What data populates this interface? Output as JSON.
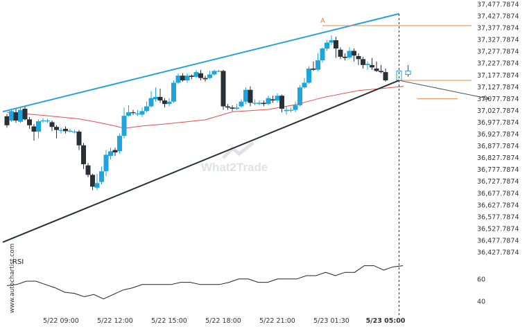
{
  "chart_data": {
    "type": "candlestick",
    "watermark": "What2Trade",
    "side_label": "www.autochartist.com",
    "pattern_marker": "A",
    "y_ticks": [
      "37,477.7874",
      "37,427.7874",
      "37,377.7874",
      "37,327.7874",
      "37,277.7874",
      "37,227.7874",
      "37,177.7874",
      "37,127.7874",
      "37,077.7874",
      "37,027.7874",
      "36,977.7874",
      "36,927.7874",
      "36,877.7874",
      "36,827.7874",
      "36,777.7874",
      "36,727.7874",
      "36,677.7874",
      "36,627.7874",
      "36,577.7874",
      "36,527.7874",
      "36,477.7874",
      "36,427.7874"
    ],
    "y_range": [
      36427.7874,
      37477.7874
    ],
    "x_ticks": [
      {
        "label": "5/22 09:00",
        "bar": 12,
        "bold": false
      },
      {
        "label": "5/22 12:00",
        "bar": 24,
        "bold": false
      },
      {
        "label": "5/22 15:00",
        "bar": 36,
        "bold": false
      },
      {
        "label": "5/22 18:00",
        "bar": 48,
        "bold": false
      },
      {
        "label": "5/22 21:00",
        "bar": 60,
        "bold": false
      },
      {
        "label": "5/23 01:30",
        "bar": 72,
        "bold": false
      },
      {
        "label": "5/23 05:00",
        "bar": 84,
        "bold": true
      }
    ],
    "candles": [
      [
        37003,
        36965,
        37012,
        36955
      ],
      [
        36985,
        37025,
        37030,
        36980
      ],
      [
        37020,
        36985,
        37035,
        36975
      ],
      [
        36980,
        37030,
        37040,
        36975
      ],
      [
        37035,
        36990,
        37045,
        36985
      ],
      [
        36990,
        36965,
        37000,
        36950
      ],
      [
        36960,
        36938,
        36970,
        36900
      ],
      [
        36938,
        36982,
        36990,
        36910
      ],
      [
        36985,
        36985,
        36995,
        36975
      ],
      [
        36983,
        36985,
        36992,
        36975
      ],
      [
        36978,
        36958,
        36985,
        36940
      ],
      [
        36958,
        36945,
        36965,
        36910
      ],
      [
        36945,
        36945,
        36955,
        36930
      ],
      [
        36950,
        36940,
        36960,
        36930
      ],
      [
        36938,
        36942,
        36950,
        36935
      ],
      [
        36938,
        36938,
        36945,
        36930
      ],
      [
        36938,
        36880,
        36945,
        36860
      ],
      [
        36880,
        36800,
        36890,
        36780
      ],
      [
        36795,
        36755,
        36805,
        36745
      ],
      [
        36755,
        36705,
        36760,
        36690
      ],
      [
        36700,
        36720,
        36760,
        36690
      ],
      [
        36725,
        36770,
        36790,
        36715
      ],
      [
        36770,
        36840,
        36860,
        36750
      ],
      [
        36835,
        36855,
        36870,
        36820
      ],
      [
        36860,
        36850,
        36870,
        36835
      ],
      [
        36855,
        36920,
        36930,
        36845
      ],
      [
        36920,
        37005,
        37040,
        36910
      ],
      [
        37005,
        37020,
        37050,
        37000
      ],
      [
        37020,
        37018,
        37030,
        37008
      ],
      [
        37015,
        37015,
        37030,
        37005
      ],
      [
        37010,
        37025,
        37040,
        37000
      ],
      [
        37025,
        37045,
        37065,
        37020
      ],
      [
        37045,
        37080,
        37110,
        37040
      ],
      [
        37075,
        37085,
        37125,
        37065
      ],
      [
        37085,
        37070,
        37120,
        37060
      ],
      [
        37070,
        37055,
        37080,
        37040
      ],
      [
        37055,
        37065,
        37080,
        37045
      ],
      [
        37065,
        37145,
        37155,
        37060
      ],
      [
        37145,
        37175,
        37185,
        37140
      ],
      [
        37175,
        37155,
        37185,
        37150
      ],
      [
        37155,
        37175,
        37185,
        37145
      ],
      [
        37175,
        37170,
        37180,
        37160
      ],
      [
        37170,
        37190,
        37200,
        37165
      ],
      [
        37185,
        37165,
        37200,
        37155
      ],
      [
        37165,
        37160,
        37175,
        37150
      ],
      [
        37165,
        37180,
        37195,
        37160
      ],
      [
        37180,
        37195,
        37200,
        37175
      ],
      [
        37195,
        37195,
        37200,
        37190
      ],
      [
        37195,
        37045,
        37200,
        37030
      ],
      [
        37045,
        37040,
        37055,
        37030
      ],
      [
        37040,
        37035,
        37050,
        37025
      ],
      [
        37035,
        37040,
        37055,
        37030
      ],
      [
        37045,
        37065,
        37075,
        37040
      ],
      [
        37065,
        37115,
        37125,
        37055
      ],
      [
        37115,
        37060,
        37130,
        37045
      ],
      [
        37060,
        37060,
        37075,
        37050
      ],
      [
        37055,
        37060,
        37070,
        37050
      ],
      [
        37060,
        37055,
        37070,
        37045
      ],
      [
        37055,
        37080,
        37090,
        37050
      ],
      [
        37075,
        37070,
        37090,
        37060
      ],
      [
        37070,
        37090,
        37100,
        37060
      ],
      [
        37090,
        37035,
        37095,
        37020
      ],
      [
        37025,
        37030,
        37045,
        37010
      ],
      [
        37030,
        37030,
        37040,
        37020
      ],
      [
        37030,
        37050,
        37065,
        37020
      ],
      [
        37050,
        37125,
        37135,
        37045
      ],
      [
        37125,
        37145,
        37165,
        37120
      ],
      [
        37145,
        37205,
        37215,
        37140
      ],
      [
        37205,
        37200,
        37235,
        37195
      ],
      [
        37200,
        37240,
        37270,
        37195
      ],
      [
        37240,
        37290,
        37295,
        37230
      ],
      [
        37290,
        37315,
        37325,
        37280
      ],
      [
        37315,
        37325,
        37345,
        37305
      ],
      [
        37325,
        37290,
        37340,
        37250
      ],
      [
        37285,
        37255,
        37295,
        37245
      ],
      [
        37255,
        37250,
        37270,
        37240
      ],
      [
        37252,
        37280,
        37295,
        37245
      ],
      [
        37280,
        37260,
        37290,
        37235
      ],
      [
        37258,
        37245,
        37270,
        37220
      ],
      [
        37245,
        37220,
        37255,
        37205
      ],
      [
        37220,
        37225,
        37235,
        37200
      ],
      [
        37220,
        37210,
        37250,
        37200
      ],
      [
        37205,
        37195,
        37235,
        37190
      ],
      [
        37195,
        37190,
        37220,
        37185
      ],
      [
        37190,
        37155,
        37205,
        37150
      ]
    ],
    "projected_candles": [
      [
        37155,
        37195,
        37195,
        37152
      ],
      [
        37180,
        37195,
        37220,
        37170
      ]
    ],
    "ma": [
      [
        0,
        37020
      ],
      [
        8,
        37007
      ],
      [
        16,
        36992
      ],
      [
        20,
        36978
      ],
      [
        24,
        36962
      ],
      [
        26,
        36952
      ],
      [
        30,
        36962
      ],
      [
        36,
        36972
      ],
      [
        44,
        36988
      ],
      [
        50,
        37022
      ],
      [
        58,
        37032
      ],
      [
        64,
        37052
      ],
      [
        70,
        37082
      ],
      [
        78,
        37112
      ],
      [
        84,
        37122
      ],
      [
        88,
        37130
      ]
    ],
    "upper_trendline": {
      "from": [
        0,
        37027
      ],
      "to": [
        87,
        37437
      ]
    },
    "lower_trendline": {
      "from": [
        0,
        36477
      ],
      "to": [
        87,
        37155
      ]
    },
    "resistance_level": 37387,
    "support_level": 37155,
    "target_level": 37077,
    "forecast_arrow": {
      "from": [
        87,
        37155
      ],
      "to": [
        107,
        37077
      ]
    },
    "current_time_bar": 87,
    "rsi": {
      "label": "RSI",
      "ticks": [
        60,
        40
      ],
      "range": [
        33,
        83
      ],
      "values": [
        [
          0,
          54
        ],
        [
          3,
          55
        ],
        [
          6,
          58
        ],
        [
          9,
          58
        ],
        [
          12,
          55
        ],
        [
          15,
          52
        ],
        [
          18,
          48
        ],
        [
          21,
          47
        ],
        [
          24,
          44
        ],
        [
          27,
          46
        ],
        [
          30,
          42
        ],
        [
          33,
          46
        ],
        [
          36,
          50
        ],
        [
          39,
          52
        ],
        [
          42,
          55
        ],
        [
          45,
          55
        ],
        [
          48,
          55
        ],
        [
          51,
          55
        ],
        [
          54,
          57
        ],
        [
          57,
          57
        ],
        [
          60,
          55
        ],
        [
          63,
          55
        ],
        [
          66,
          55
        ],
        [
          69,
          57
        ],
        [
          72,
          60
        ],
        [
          75,
          60
        ],
        [
          78,
          57
        ],
        [
          81,
          57
        ],
        [
          84,
          60
        ],
        [
          87,
          60
        ],
        [
          90,
          60
        ],
        [
          93,
          63
        ],
        [
          96,
          63
        ],
        [
          99,
          66
        ],
        [
          102,
          63
        ],
        [
          105,
          66
        ],
        [
          108,
          66
        ],
        [
          111,
          72
        ],
        [
          114,
          72
        ],
        [
          117,
          68
        ],
        [
          120,
          71
        ],
        [
          123,
          72
        ]
      ]
    }
  }
}
